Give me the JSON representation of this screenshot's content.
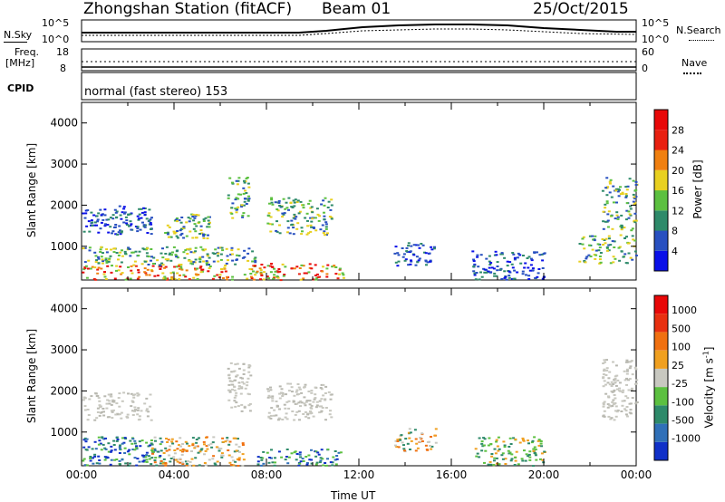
{
  "header": {
    "station": "Zhongshan Station (fitACF)",
    "beam": "Beam 01",
    "date": "25/Oct/2015"
  },
  "top_strips": {
    "nsky_label": "N.Sky",
    "nsky_ticks": [
      "10^5",
      "10^0"
    ],
    "nsearch_label": "N.Search",
    "nsearch_ticks": [
      "10^5",
      "10^0"
    ],
    "freq_label_1": "Freq.",
    "freq_label_2": "[MHz]",
    "freq_ticks": [
      "18",
      "8"
    ],
    "nave_label": "Nave",
    "nave_ticks": [
      "60",
      "0"
    ],
    "cpid_label": "CPID",
    "cpid_text": "normal (fast stereo) 153"
  },
  "chart_data": [
    {
      "type": "heatmap",
      "title": "",
      "ylabel": "Slant Range [km]",
      "ylim": [
        180,
        4500
      ],
      "yticks": [
        1000,
        2000,
        3000,
        4000
      ],
      "xlim": [
        0,
        24
      ],
      "colorbar": {
        "label": "Power [dB]",
        "ticks": [
          "4",
          "8",
          "12",
          "16",
          "20",
          "24",
          "28"
        ],
        "colors": [
          "#0a10e8",
          "#2850c0",
          "#2e8a6a",
          "#5cc040",
          "#e8d020",
          "#f08010",
          "#e82010",
          "#e80808"
        ]
      },
      "echo_regions": [
        {
          "t0": 0.0,
          "t1": 3.0,
          "r0": 1300,
          "r1": 2000,
          "level": "low"
        },
        {
          "t0": 0.0,
          "t1": 6.5,
          "r0": 200,
          "r1": 550,
          "level": "high"
        },
        {
          "t0": 0.0,
          "t1": 7.5,
          "r0": 550,
          "r1": 1000,
          "level": "mid"
        },
        {
          "t0": 3.5,
          "t1": 5.5,
          "r0": 1200,
          "r1": 1800,
          "level": "mid"
        },
        {
          "t0": 6.3,
          "t1": 7.2,
          "r0": 1700,
          "r1": 2700,
          "level": "mid"
        },
        {
          "t0": 7.0,
          "t1": 11.3,
          "r0": 200,
          "r1": 600,
          "level": "high"
        },
        {
          "t0": 8.0,
          "t1": 10.8,
          "r0": 1300,
          "r1": 2200,
          "level": "mid"
        },
        {
          "t0": 13.5,
          "t1": 15.3,
          "r0": 550,
          "r1": 1100,
          "level": "low"
        },
        {
          "t0": 16.8,
          "t1": 20.0,
          "r0": 200,
          "r1": 900,
          "level": "low"
        },
        {
          "t0": 21.5,
          "t1": 24.0,
          "r0": 600,
          "r1": 1300,
          "level": "mid"
        },
        {
          "t0": 22.5,
          "t1": 24.0,
          "r0": 1400,
          "r1": 2700,
          "level": "mid"
        }
      ]
    },
    {
      "type": "heatmap",
      "title": "",
      "ylabel": "Slant Range [km]",
      "ylim": [
        180,
        4500
      ],
      "yticks": [
        1000,
        2000,
        3000,
        4000
      ],
      "xlim": [
        0,
        24
      ],
      "xticks": [
        "00:00",
        "04:00",
        "08:00",
        "12:00",
        "16:00",
        "20:00",
        "00:00"
      ],
      "xlabel": "Time UT",
      "colorbar": {
        "label": "Velocity [m s",
        "label_sup": "-1",
        "label_end": "]",
        "ticks": [
          "1000",
          "500",
          "100",
          "25",
          "-25",
          "-100",
          "-500",
          "-1000"
        ],
        "colors": [
          "#1030c8",
          "#3070b8",
          "#2e8a6a",
          "#5cc040",
          "#c8c8c0",
          "#f0a020",
          "#f07010",
          "#e83010",
          "#e80808"
        ]
      },
      "echo_regions": [
        {
          "t0": 0.0,
          "t1": 3.0,
          "r0": 1300,
          "r1": 2000,
          "level": "gray"
        },
        {
          "t0": 0.0,
          "t1": 3.5,
          "r0": 200,
          "r1": 900,
          "level": "green"
        },
        {
          "t0": 3.0,
          "t1": 7.0,
          "r0": 200,
          "r1": 900,
          "level": "orange"
        },
        {
          "t0": 6.3,
          "t1": 7.3,
          "r0": 1500,
          "r1": 2700,
          "level": "gray"
        },
        {
          "t0": 7.5,
          "t1": 11.3,
          "r0": 200,
          "r1": 600,
          "level": "green"
        },
        {
          "t0": 8.0,
          "t1": 10.8,
          "r0": 1300,
          "r1": 2200,
          "level": "gray"
        },
        {
          "t0": 13.5,
          "t1": 15.3,
          "r0": 550,
          "r1": 1100,
          "level": "orange"
        },
        {
          "t0": 17.0,
          "t1": 20.0,
          "r0": 200,
          "r1": 900,
          "level": "lightgreen"
        },
        {
          "t0": 22.5,
          "t1": 24.0,
          "r0": 1300,
          "r1": 2800,
          "level": "gray"
        }
      ]
    }
  ]
}
